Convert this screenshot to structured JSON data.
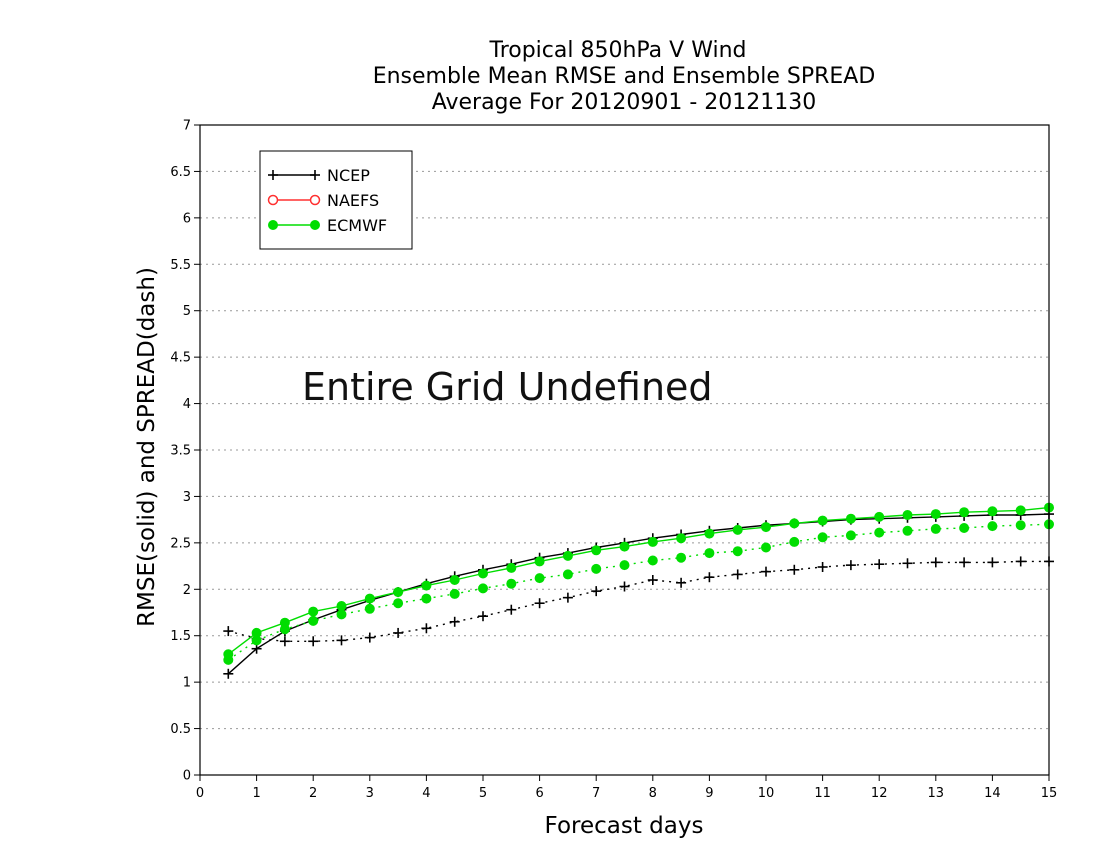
{
  "chart_data": {
    "type": "line",
    "title_lines": [
      "Tropical 850hPa V Wind",
      "Ensemble Mean RMSE and Ensemble SPREAD",
      "Average For 20120901 - 20121130"
    ],
    "xlabel": "Forecast days",
    "ylabel": "RMSE(solid) and SPREAD(dash)",
    "xlim": [
      0,
      15
    ],
    "ylim": [
      0,
      7
    ],
    "x_ticks": [
      "0",
      "1",
      "2",
      "3",
      "4",
      "5",
      "6",
      "7",
      "8",
      "9",
      "10",
      "11",
      "12",
      "13",
      "14",
      "15"
    ],
    "y_ticks": [
      "0",
      "0.5",
      "1",
      "1.5",
      "2",
      "2.5",
      "3",
      "3.5",
      "4",
      "4.5",
      "5",
      "5.5",
      "6",
      "6.5",
      "7"
    ],
    "y_tick_values": [
      0,
      0.5,
      1,
      1.5,
      2,
      2.5,
      3,
      3.5,
      4,
      4.5,
      5,
      5.5,
      6,
      6.5,
      7
    ],
    "grid": "horizontal dotted",
    "legend_position": "top-left",
    "annotation": "Entire Grid Undefined",
    "x": [
      0.5,
      1,
      1.5,
      2,
      2.5,
      3,
      3.5,
      4,
      4.5,
      5,
      5.5,
      6,
      6.5,
      7,
      7.5,
      8,
      8.5,
      9,
      9.5,
      10,
      10.5,
      11,
      11.5,
      12,
      12.5,
      13,
      13.5,
      14,
      14.5,
      15
    ],
    "series": [
      {
        "name": "NCEP",
        "color": "#000000",
        "marker": "plus",
        "rmse": [
          1.09,
          1.36,
          1.55,
          1.67,
          1.78,
          1.88,
          1.97,
          2.06,
          2.14,
          2.21,
          2.27,
          2.34,
          2.39,
          2.45,
          2.5,
          2.55,
          2.59,
          2.63,
          2.66,
          2.69,
          2.71,
          2.73,
          2.75,
          2.76,
          2.77,
          2.78,
          2.79,
          2.8,
          2.8,
          2.81
        ],
        "spread": [
          1.55,
          1.47,
          1.44,
          1.44,
          1.45,
          1.48,
          1.53,
          1.58,
          1.65,
          1.71,
          1.78,
          1.85,
          1.91,
          1.98,
          2.03,
          2.1,
          2.07,
          2.13,
          2.16,
          2.19,
          2.21,
          2.24,
          2.26,
          2.27,
          2.28,
          2.29,
          2.29,
          2.29,
          2.3,
          2.3
        ]
      },
      {
        "name": "NAEFS",
        "color": "#ff3030",
        "marker": "open-circle",
        "rmse": [],
        "spread": []
      },
      {
        "name": "ECMWF",
        "color": "#00dd00",
        "marker": "filled-circle",
        "rmse": [
          1.3,
          1.53,
          1.64,
          1.76,
          1.82,
          1.9,
          1.97,
          2.04,
          2.1,
          2.17,
          2.23,
          2.3,
          2.36,
          2.42,
          2.46,
          2.51,
          2.55,
          2.6,
          2.64,
          2.67,
          2.71,
          2.74,
          2.76,
          2.78,
          2.8,
          2.81,
          2.83,
          2.84,
          2.85,
          2.88
        ],
        "spread": [
          1.24,
          1.45,
          1.57,
          1.66,
          1.73,
          1.79,
          1.85,
          1.9,
          1.95,
          2.01,
          2.06,
          2.12,
          2.16,
          2.22,
          2.26,
          2.31,
          2.34,
          2.39,
          2.41,
          2.45,
          2.51,
          2.56,
          2.58,
          2.61,
          2.63,
          2.65,
          2.66,
          2.68,
          2.69,
          2.7
        ]
      }
    ]
  }
}
